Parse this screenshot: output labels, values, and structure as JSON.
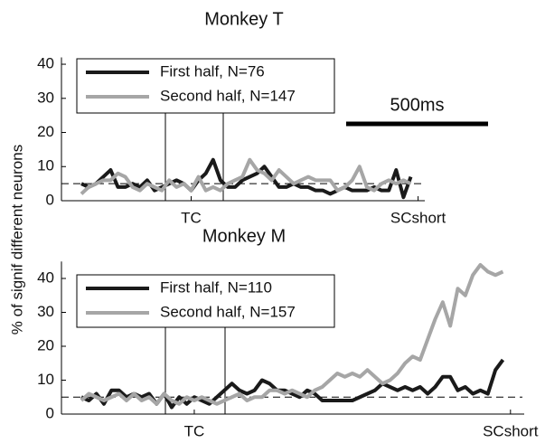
{
  "chart_data": [
    {
      "type": "line",
      "title": "Monkey T",
      "ylabel": "% of signif different neurons",
      "scale_bar_label": "500ms",
      "categories": [
        null,
        null,
        null,
        null,
        null,
        null,
        null,
        null,
        null,
        null,
        null,
        null,
        null,
        null,
        null,
        "TC",
        null,
        null,
        null,
        null,
        null,
        null,
        null,
        null,
        null,
        null,
        null,
        null,
        null,
        null,
        null,
        null,
        null,
        null,
        null,
        null,
        null,
        null,
        null,
        null,
        null,
        null,
        null,
        null,
        null,
        null,
        "SCshort"
      ],
      "series": [
        {
          "name": "First half, N=76",
          "color": "#1a1a1a",
          "values": [
            5,
            4,
            5,
            7,
            9,
            4,
            4,
            5,
            4,
            6,
            3,
            4,
            5,
            6,
            5,
            3,
            6,
            8,
            12,
            6,
            4,
            4,
            6,
            7,
            8,
            10,
            7,
            4,
            4,
            5,
            4,
            4,
            3,
            3,
            2,
            3,
            4,
            3,
            3,
            3,
            4,
            3,
            3,
            9,
            1,
            7,
            null
          ]
        },
        {
          "name": "Second half, N=147",
          "color": "#a6a6a6",
          "values": [
            2,
            4,
            5,
            6,
            6,
            8,
            7,
            4,
            3,
            5,
            4,
            3,
            6,
            4,
            5,
            3,
            7,
            3,
            4,
            3,
            5,
            6,
            7,
            12,
            9,
            8,
            6,
            9,
            7,
            5,
            6,
            7,
            6,
            6,
            6,
            3,
            4,
            6,
            10,
            4,
            3,
            5,
            6,
            5,
            6,
            5,
            null
          ]
        }
      ],
      "reference_line": 5,
      "ylim": [
        0,
        42
      ],
      "yticks": [
        0,
        10,
        20,
        30,
        40
      ]
    },
    {
      "type": "line",
      "title": "Monkey M",
      "categories": [
        null,
        null,
        null,
        null,
        null,
        null,
        null,
        null,
        null,
        null,
        null,
        null,
        null,
        null,
        null,
        "TC",
        null,
        null,
        null,
        null,
        null,
        null,
        null,
        null,
        null,
        null,
        null,
        null,
        null,
        null,
        null,
        null,
        null,
        null,
        null,
        null,
        null,
        null,
        null,
        null,
        null,
        null,
        null,
        null,
        null,
        null,
        null,
        null,
        null,
        null,
        null,
        null,
        null,
        null,
        null,
        null,
        null,
        "SCshort"
      ],
      "series": [
        {
          "name": "First half, N=110",
          "color": "#1a1a1a",
          "values": [
            5,
            4,
            6,
            3,
            7,
            7,
            5,
            6,
            5,
            6,
            3,
            6,
            2,
            5,
            3,
            5,
            4,
            3,
            5,
            7,
            9,
            7,
            6,
            7,
            10,
            9,
            7,
            7,
            6,
            5,
            7,
            6,
            4,
            4,
            4,
            4,
            4,
            5,
            6,
            7,
            9,
            8,
            7,
            8,
            7,
            8,
            6,
            8,
            11,
            11,
            7,
            8,
            6,
            7,
            6,
            13,
            16,
            null
          ]
        },
        {
          "name": "Second half, N=157",
          "color": "#a6a6a6",
          "values": [
            4,
            6,
            5,
            4,
            5,
            6,
            4,
            6,
            4,
            5,
            3,
            6,
            4,
            3,
            5,
            4,
            5,
            4,
            3,
            4,
            5,
            6,
            4,
            5,
            5,
            7,
            7,
            6,
            7,
            6,
            5,
            7,
            8,
            10,
            12,
            11,
            12,
            11,
            13,
            11,
            9,
            10,
            12,
            15,
            17,
            16,
            22,
            28,
            33,
            26,
            37,
            35,
            41,
            44,
            42,
            41,
            42,
            null
          ]
        }
      ],
      "reference_line": 5,
      "ylim": [
        0,
        45
      ],
      "yticks": [
        0,
        10,
        20,
        30,
        40
      ]
    }
  ]
}
